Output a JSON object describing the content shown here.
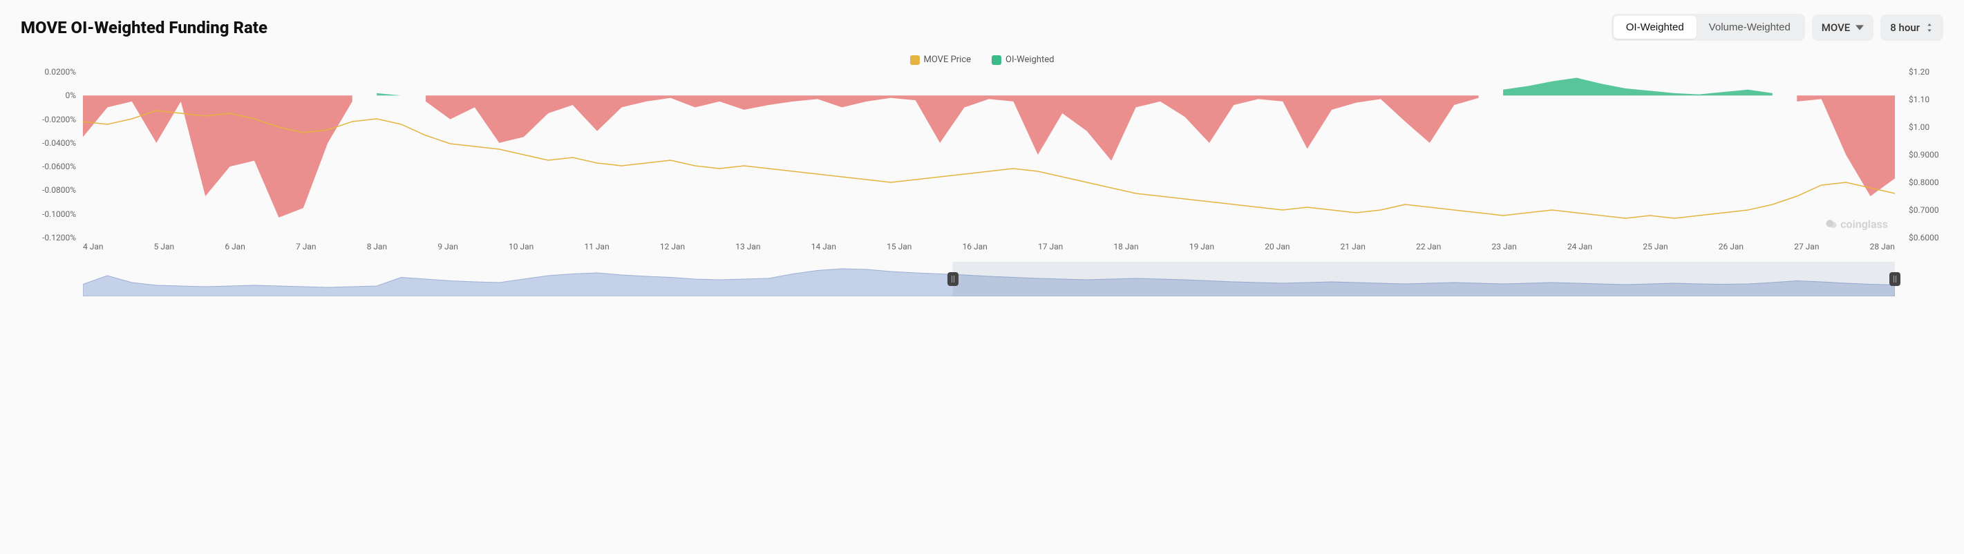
{
  "header": {
    "title": "MOVE OI-Weighted Funding Rate",
    "weighting_tabs": [
      "OI-Weighted",
      "Volume-Weighted"
    ],
    "weighting_active": 0,
    "symbol_select": "MOVE",
    "interval_select": "8 hour"
  },
  "legend": {
    "price_label": "MOVE Price",
    "price_color": "#e3b440",
    "rate_label": "OI-Weighted",
    "rate_color": "#3bbb8a"
  },
  "chart": {
    "type": "combo-area-line",
    "background_color": "#fafafa",
    "area_positive_color": "#3bbb8a",
    "area_negative_color": "#e77a7a",
    "area_opacity": 0.85,
    "price_line_color": "#e3b440",
    "price_line_width": 1.5,
    "grid_color": "rgba(0,0,0,0)",
    "font_family": "system-ui",
    "axis_font_size": 12,
    "axis_color": "#666666",
    "left_axis": {
      "label_format": "percent",
      "ticks": [
        "0.0200%",
        "0%",
        "-0.0200%",
        "-0.0400%",
        "-0.0600%",
        "-0.0800%",
        "-0.1000%",
        "-0.1200%"
      ],
      "min": -0.12,
      "max": 0.02
    },
    "right_axis": {
      "label_format": "currency",
      "ticks": [
        "$1.20",
        "$1.10",
        "$1.00",
        "$0.9000",
        "$0.8000",
        "$0.7000",
        "$0.6000"
      ],
      "min": 0.6,
      "max": 1.2
    },
    "x_categories": [
      "4 Jan",
      "5 Jan",
      "6 Jan",
      "7 Jan",
      "8 Jan",
      "9 Jan",
      "10 Jan",
      "11 Jan",
      "12 Jan",
      "13 Jan",
      "14 Jan",
      "15 Jan",
      "16 Jan",
      "17 Jan",
      "18 Jan",
      "19 Jan",
      "20 Jan",
      "21 Jan",
      "22 Jan",
      "23 Jan",
      "24 Jan",
      "25 Jan",
      "26 Jan",
      "27 Jan",
      "28 Jan"
    ],
    "funding_rate": [
      -0.035,
      -0.01,
      -0.005,
      -0.04,
      -0.005,
      -0.085,
      -0.06,
      -0.055,
      -0.103,
      -0.095,
      -0.04,
      -0.005,
      0.002,
      0.0,
      -0.005,
      -0.02,
      -0.01,
      -0.04,
      -0.035,
      -0.015,
      -0.008,
      -0.03,
      -0.01,
      -0.005,
      -0.002,
      -0.01,
      -0.005,
      -0.012,
      -0.008,
      -0.005,
      -0.003,
      -0.01,
      -0.005,
      -0.002,
      -0.004,
      -0.04,
      -0.01,
      -0.003,
      -0.005,
      -0.05,
      -0.015,
      -0.03,
      -0.055,
      -0.01,
      -0.005,
      -0.018,
      -0.04,
      -0.008,
      -0.003,
      -0.005,
      -0.045,
      -0.012,
      -0.006,
      -0.003,
      -0.022,
      -0.04,
      -0.008,
      -0.002,
      0.005,
      0.008,
      0.012,
      0.015,
      0.01,
      0.006,
      0.004,
      0.002,
      0.001,
      0.003,
      0.005,
      0.002,
      -0.005,
      -0.003,
      -0.05,
      -0.085,
      -0.07
    ],
    "price": [
      1.02,
      1.01,
      1.03,
      1.06,
      1.05,
      1.04,
      1.05,
      1.03,
      1.0,
      0.98,
      0.99,
      1.02,
      1.03,
      1.01,
      0.97,
      0.94,
      0.93,
      0.92,
      0.9,
      0.88,
      0.89,
      0.87,
      0.86,
      0.87,
      0.88,
      0.86,
      0.85,
      0.86,
      0.85,
      0.84,
      0.83,
      0.82,
      0.81,
      0.8,
      0.81,
      0.82,
      0.83,
      0.84,
      0.85,
      0.84,
      0.82,
      0.8,
      0.78,
      0.76,
      0.75,
      0.74,
      0.73,
      0.72,
      0.71,
      0.7,
      0.71,
      0.7,
      0.69,
      0.7,
      0.72,
      0.71,
      0.7,
      0.69,
      0.68,
      0.69,
      0.7,
      0.69,
      0.68,
      0.67,
      0.68,
      0.67,
      0.68,
      0.69,
      0.7,
      0.72,
      0.75,
      0.79,
      0.8,
      0.78,
      0.76
    ]
  },
  "brush": {
    "fill_color": "#c5d1e8",
    "stroke_color": "#9db0d6",
    "selection_bg": "rgba(100,120,160,0.12)",
    "handle_color": "#444444",
    "selection_start_pct": 48,
    "selection_end_pct": 100,
    "series": [
      0.35,
      0.6,
      0.4,
      0.32,
      0.3,
      0.28,
      0.3,
      0.32,
      0.3,
      0.28,
      0.26,
      0.28,
      0.3,
      0.55,
      0.5,
      0.45,
      0.42,
      0.4,
      0.5,
      0.6,
      0.65,
      0.68,
      0.62,
      0.58,
      0.55,
      0.5,
      0.48,
      0.5,
      0.52,
      0.65,
      0.75,
      0.8,
      0.78,
      0.72,
      0.68,
      0.65,
      0.62,
      0.58,
      0.55,
      0.52,
      0.5,
      0.48,
      0.5,
      0.52,
      0.5,
      0.48,
      0.45,
      0.42,
      0.4,
      0.38,
      0.4,
      0.42,
      0.4,
      0.38,
      0.36,
      0.38,
      0.4,
      0.38,
      0.36,
      0.38,
      0.4,
      0.38,
      0.36,
      0.34,
      0.36,
      0.38,
      0.36,
      0.35,
      0.36,
      0.4,
      0.45,
      0.42,
      0.38,
      0.35,
      0.33
    ]
  },
  "watermark": "coinglass"
}
